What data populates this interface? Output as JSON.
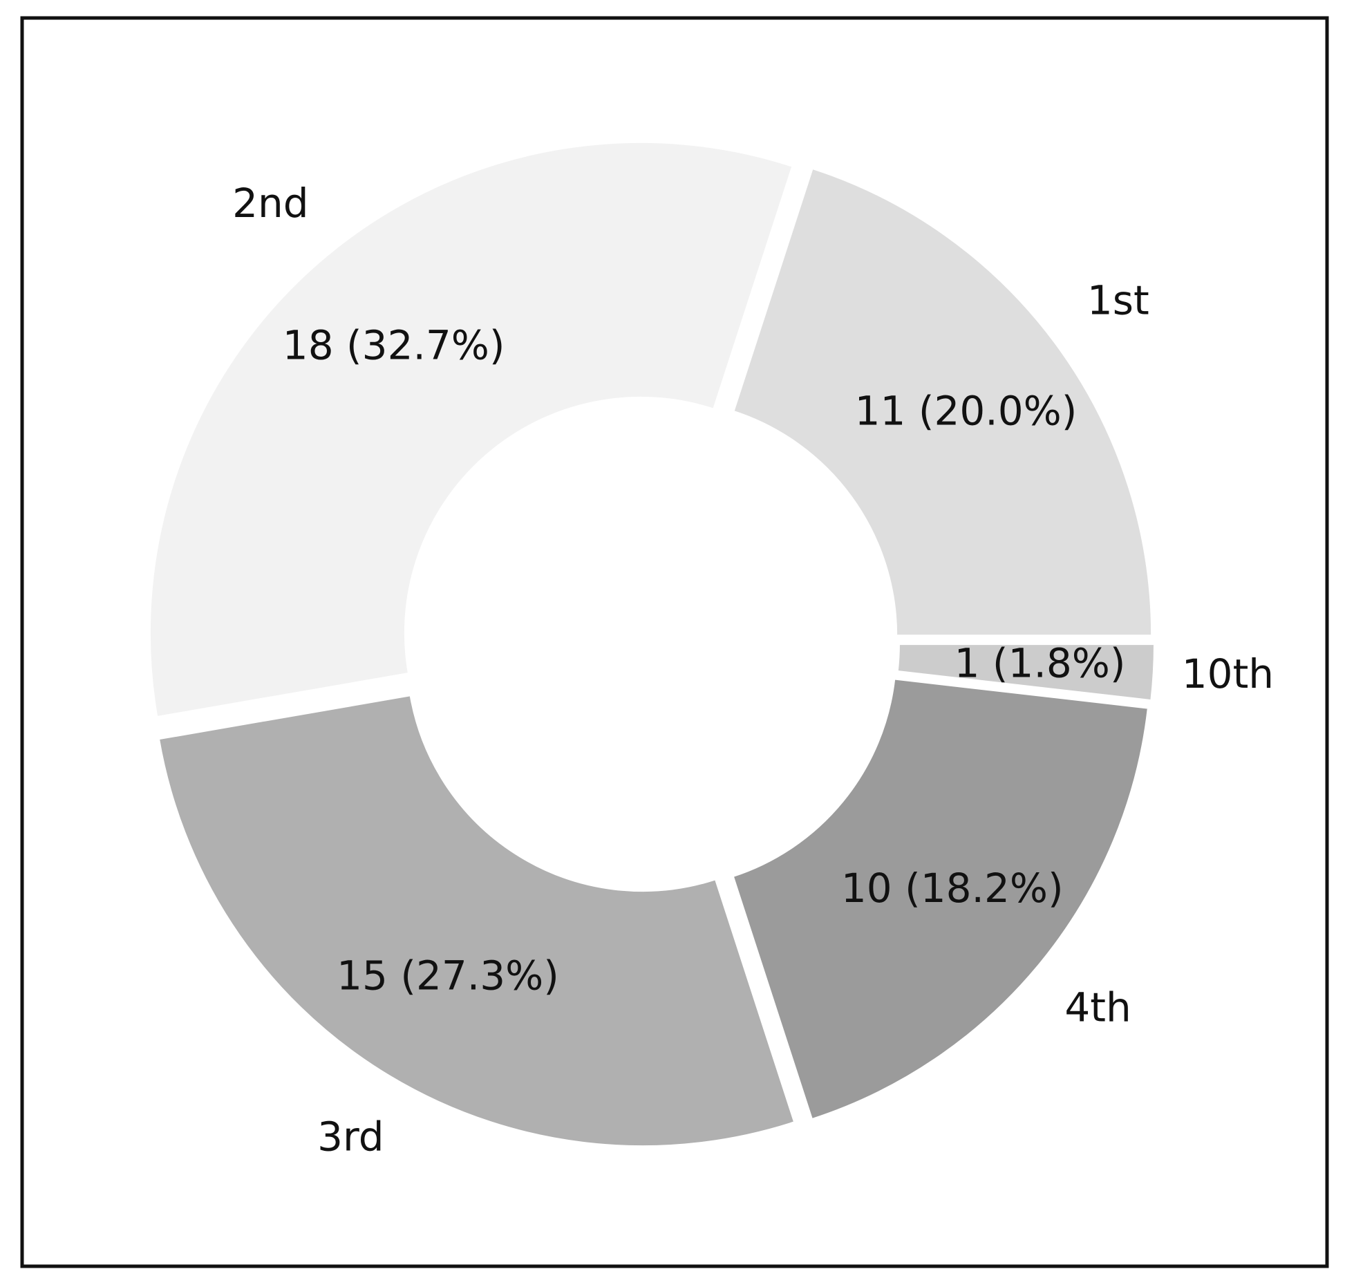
{
  "chart_data": {
    "type": "pie",
    "donut": true,
    "categories": [
      "1st",
      "2nd",
      "3rd",
      "4th",
      "10th"
    ],
    "values": [
      11,
      18,
      15,
      10,
      1
    ],
    "value_labels": [
      "11 (20.0%)",
      "18 (32.7%)",
      "15 (27.3%)",
      "10 (18.2%)",
      "1 (1.8%)"
    ],
    "colors": [
      "#dedede",
      "#f2f2f2",
      "#b0b0b0",
      "#9b9b9b",
      "#cccccc"
    ]
  }
}
